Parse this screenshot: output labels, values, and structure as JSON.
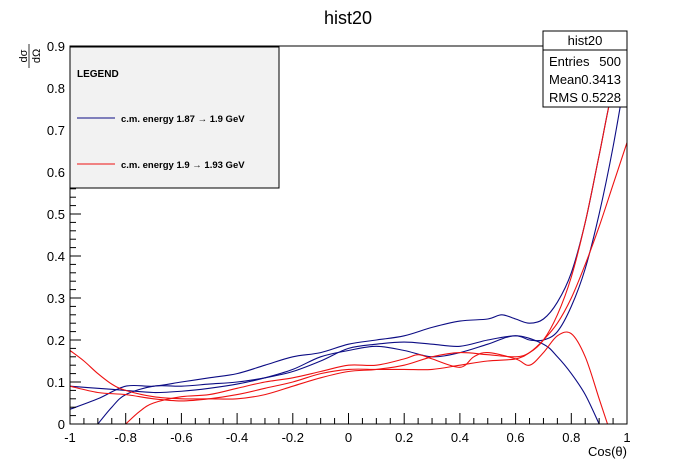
{
  "colors": {
    "navy": "#0c0c84",
    "red": "#ee1111",
    "legend_bg": "#f2f2f2",
    "frame": "#000000"
  },
  "stats_box": {
    "title": "hist20",
    "rows": [
      {
        "label": "Entries",
        "value": "500"
      },
      {
        "label": "Mean",
        "value": "0.3413"
      },
      {
        "label": "RMS",
        "value": "0.5228"
      }
    ]
  },
  "chart_data": {
    "type": "line",
    "title": "hist20",
    "xlabel": "Cos(θ)",
    "ylabel_num": "dσ",
    "ylabel_den": "dΩ",
    "xlim": [
      -1,
      1
    ],
    "ylim": [
      0,
      0.9
    ],
    "x_ticks": [
      -1,
      -0.8,
      -0.6,
      -0.4,
      -0.2,
      0,
      0.2,
      0.4,
      0.6,
      0.8,
      1
    ],
    "x_tick_labels": [
      "-1",
      "-0.8",
      "-0.6",
      "-0.4",
      "-0.2",
      "0",
      "0.2",
      "0.4",
      "0.6",
      "0.8",
      "1"
    ],
    "y_ticks": [
      0,
      0.1,
      0.2,
      0.3,
      0.4,
      0.5,
      0.6,
      0.7,
      0.8,
      0.9
    ],
    "y_tick_labels": [
      "0",
      "0.1",
      "0.2",
      "0.3",
      "0.4",
      "0.5",
      "0.6",
      "0.7",
      "0.8",
      "0.9"
    ],
    "grid": false,
    "legend": {
      "title": "LEGEND",
      "placement": "top-left",
      "entries": [
        {
          "label": "c.m. energy 1.87 → 1.9 GeV",
          "color": "#0c0c84"
        },
        {
          "label": "c.m. energy 1.9 → 1.93 GeV",
          "color": "#ee1111"
        }
      ]
    },
    "series": [
      {
        "name": "c.m. energy 1.87 → 1.9 GeV (curve A)",
        "color": "#0c0c84",
        "x": [
          -1,
          -0.9,
          -0.8,
          -0.7,
          -0.6,
          -0.5,
          -0.4,
          -0.3,
          -0.2,
          -0.1,
          0,
          0.1,
          0.2,
          0.3,
          0.4,
          0.5,
          0.55,
          0.6,
          0.65,
          0.7,
          0.75,
          0.8,
          0.85,
          0.9,
          0.95,
          1
        ],
        "y": [
          0.035,
          0.06,
          0.09,
          0.09,
          0.1,
          0.11,
          0.12,
          0.14,
          0.16,
          0.17,
          0.19,
          0.2,
          0.21,
          0.23,
          0.245,
          0.25,
          0.26,
          0.25,
          0.24,
          0.25,
          0.29,
          0.36,
          0.48,
          0.64,
          0.8,
          0.88
        ]
      },
      {
        "name": "c.m. energy 1.87 → 1.9 GeV (curve B)",
        "color": "#0c0c84",
        "x": [
          -0.9,
          -0.85,
          -0.8,
          -0.7,
          -0.6,
          -0.5,
          -0.4,
          -0.3,
          -0.2,
          -0.1,
          0,
          0.1,
          0.2,
          0.3,
          0.4,
          0.5,
          0.6,
          0.65,
          0.7,
          0.75,
          0.8,
          0.85,
          0.9,
          0.95,
          1
        ],
        "y": [
          0.0,
          0.04,
          0.07,
          0.09,
          0.09,
          0.095,
          0.1,
          0.11,
          0.125,
          0.15,
          0.18,
          0.19,
          0.195,
          0.19,
          0.185,
          0.2,
          0.21,
          0.2,
          0.2,
          0.22,
          0.28,
          0.37,
          0.5,
          0.66,
          0.85
        ]
      },
      {
        "name": "c.m. energy 1.87 → 1.9 GeV (curve C)",
        "color": "#0c0c84",
        "x": [
          -1,
          -0.9,
          -0.8,
          -0.7,
          -0.6,
          -0.5,
          -0.4,
          -0.3,
          -0.2,
          -0.1,
          0,
          0.1,
          0.2,
          0.3,
          0.4,
          0.5,
          0.6,
          0.7,
          0.75,
          0.8,
          0.85,
          0.9
        ],
        "y": [
          0.09,
          0.085,
          0.08,
          0.075,
          0.078,
          0.085,
          0.095,
          0.11,
          0.13,
          0.16,
          0.175,
          0.185,
          0.175,
          0.16,
          0.17,
          0.19,
          0.21,
          0.19,
          0.16,
          0.12,
          0.07,
          0.0
        ]
      },
      {
        "name": "c.m. energy 1.9 → 1.93 GeV (curve A)",
        "color": "#ee1111",
        "x": [
          -1,
          -0.95,
          -0.9,
          -0.85,
          -0.8,
          -0.7,
          -0.6,
          -0.5,
          -0.4,
          -0.3,
          -0.2,
          -0.1,
          0,
          0.1,
          0.2,
          0.3,
          0.4,
          0.5,
          0.6,
          0.65,
          0.7,
          0.75,
          0.8,
          0.85,
          0.9,
          0.95,
          1
        ],
        "y": [
          0.175,
          0.15,
          0.12,
          0.095,
          0.08,
          0.065,
          0.06,
          0.06,
          0.06,
          0.07,
          0.09,
          0.11,
          0.125,
          0.13,
          0.14,
          0.16,
          0.17,
          0.165,
          0.16,
          0.17,
          0.2,
          0.26,
          0.35,
          0.48,
          0.64,
          0.8,
          0.89
        ]
      },
      {
        "name": "c.m. energy 1.9 → 1.93 GeV (curve B)",
        "color": "#ee1111",
        "x": [
          -1,
          -0.9,
          -0.8,
          -0.7,
          -0.6,
          -0.5,
          -0.4,
          -0.3,
          -0.2,
          -0.1,
          0,
          0.1,
          0.2,
          0.3,
          0.4,
          0.5,
          0.6,
          0.65,
          0.7,
          0.75,
          0.8,
          0.85,
          0.9,
          0.95,
          1
        ],
        "y": [
          0.09,
          0.075,
          0.07,
          0.06,
          0.055,
          0.06,
          0.07,
          0.085,
          0.1,
          0.12,
          0.13,
          0.13,
          0.13,
          0.13,
          0.14,
          0.15,
          0.155,
          0.17,
          0.2,
          0.24,
          0.3,
          0.38,
          0.47,
          0.57,
          0.67
        ]
      },
      {
        "name": "c.m. energy 1.9 → 1.93 GeV (curve C)",
        "color": "#ee1111",
        "x": [
          -0.8,
          -0.75,
          -0.7,
          -0.6,
          -0.5,
          -0.4,
          -0.3,
          -0.2,
          -0.1,
          0,
          0.1,
          0.2,
          0.25,
          0.3,
          0.4,
          0.45,
          0.5,
          0.6,
          0.65,
          0.7,
          0.75,
          0.8,
          0.85,
          0.9,
          0.93
        ],
        "y": [
          0.0,
          0.03,
          0.05,
          0.065,
          0.07,
          0.085,
          0.1,
          0.11,
          0.125,
          0.14,
          0.14,
          0.155,
          0.165,
          0.155,
          0.135,
          0.16,
          0.17,
          0.155,
          0.14,
          0.17,
          0.21,
          0.215,
          0.16,
          0.06,
          0.0
        ]
      }
    ]
  }
}
